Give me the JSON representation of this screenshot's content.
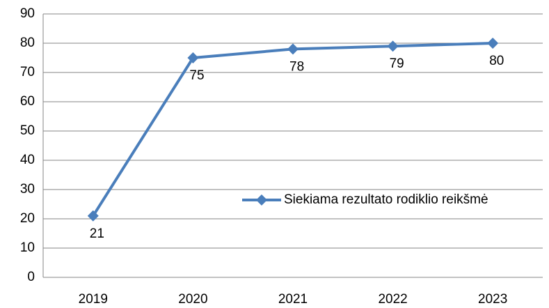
{
  "chart_data": {
    "type": "line",
    "categories": [
      "2019",
      "2020",
      "2021",
      "2022",
      "2023"
    ],
    "series": [
      {
        "name": "Siekiama rezultato rodiklio reikšmė",
        "color": "#4a7ebb",
        "values": [
          21,
          75,
          78,
          79,
          80
        ]
      }
    ],
    "ylim": [
      0,
      90
    ],
    "yticks": [
      0,
      10,
      20,
      30,
      40,
      50,
      60,
      70,
      80,
      90
    ],
    "grid": true,
    "legend": "right"
  }
}
